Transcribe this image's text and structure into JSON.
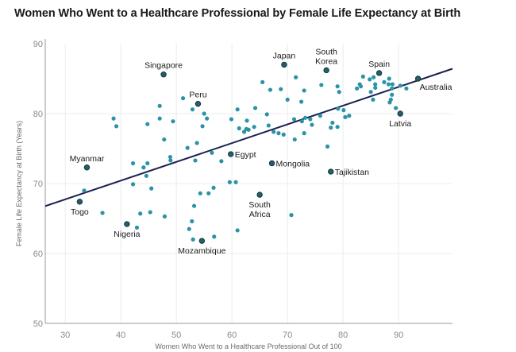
{
  "chart_data": {
    "type": "scatter",
    "title": "Women Who Went to a Healthcare Professional by Female Life Expectancy at Birth",
    "xlabel": "Women Who Went to a Healthcare Professional Out of 100",
    "ylabel": "Female Life Expectancy at Birth (Years)",
    "xlim": [
      26.4,
      99.7
    ],
    "ylim": [
      50,
      90
    ],
    "xticks": [
      30,
      40,
      50,
      60,
      70,
      80,
      90
    ],
    "yticks": [
      50,
      60,
      70,
      80,
      90
    ],
    "grid": true,
    "colors": {
      "point": "#2b93a6",
      "highlight": "#24606c",
      "highlight_stroke": "#14343a",
      "trend": "#1c2150",
      "grid": "#ececec",
      "axis": "#9a9a9a"
    },
    "trendline": {
      "slope": 0.268,
      "intercept": 59.7
    },
    "highlighted": [
      {
        "name": "Togo",
        "x": 32.6,
        "y": 67.4,
        "label_pos": "below"
      },
      {
        "name": "Myanmar",
        "x": 33.9,
        "y": 72.3,
        "label_pos": "above"
      },
      {
        "name": "Nigeria",
        "x": 41.1,
        "y": 64.2,
        "label_pos": "below"
      },
      {
        "name": "Singapore",
        "x": 47.7,
        "y": 85.6,
        "label_pos": "above"
      },
      {
        "name": "Peru",
        "x": 53.9,
        "y": 81.4,
        "label_pos": "above"
      },
      {
        "name": "Mozambique",
        "x": 54.6,
        "y": 61.8,
        "label_pos": "below"
      },
      {
        "name": "Egypt",
        "x": 59.8,
        "y": 74.2,
        "label_pos": "right"
      },
      {
        "name": "South Africa",
        "x": 65.0,
        "y": 68.4,
        "label_pos": "below"
      },
      {
        "name": "Mongolia",
        "x": 67.2,
        "y": 72.9,
        "label_pos": "right"
      },
      {
        "name": "Japan",
        "x": 69.4,
        "y": 87.0,
        "label_pos": "above"
      },
      {
        "name": "South Korea",
        "x": 77.0,
        "y": 86.2,
        "label_pos": "above"
      },
      {
        "name": "Tajikistan",
        "x": 77.8,
        "y": 71.7,
        "label_pos": "right"
      },
      {
        "name": "Spain",
        "x": 86.5,
        "y": 85.8,
        "label_pos": "above"
      },
      {
        "name": "Latvia",
        "x": 90.3,
        "y": 80.0,
        "label_pos": "below"
      },
      {
        "name": "Australia",
        "x": 93.5,
        "y": 85.0,
        "label_pos": "below-right"
      }
    ],
    "points": [
      [
        33.4,
        69.0
      ],
      [
        36.7,
        65.8
      ],
      [
        42.9,
        63.7
      ],
      [
        43.5,
        65.7
      ],
      [
        45.3,
        65.9
      ],
      [
        47.9,
        65.3
      ],
      [
        42.2,
        72.9
      ],
      [
        44.8,
        72.9
      ],
      [
        44.1,
        72.3
      ],
      [
        44.6,
        71.1
      ],
      [
        42.2,
        69.9
      ],
      [
        45.5,
        69.3
      ],
      [
        51.2,
        82.2
      ],
      [
        47.0,
        81.1
      ],
      [
        52.9,
        80.6
      ],
      [
        55.0,
        80.0
      ],
      [
        55.5,
        79.3
      ],
      [
        54.7,
        78.2
      ],
      [
        38.7,
        79.3
      ],
      [
        39.2,
        78.2
      ],
      [
        44.8,
        78.5
      ],
      [
        47.0,
        79.3
      ],
      [
        49.4,
        78.9
      ],
      [
        47.8,
        76.3
      ],
      [
        53.7,
        75.8
      ],
      [
        52.0,
        75.1
      ],
      [
        48.9,
        73.8
      ],
      [
        48.95,
        73.3
      ],
      [
        56.4,
        74.4
      ],
      [
        58.1,
        73.2
      ],
      [
        53.4,
        73.3
      ],
      [
        59.6,
        70.2
      ],
      [
        60.7,
        70.2
      ],
      [
        56.7,
        69.4
      ],
      [
        54.3,
        68.6
      ],
      [
        55.8,
        68.6
      ],
      [
        53.2,
        66.8
      ],
      [
        52.8,
        64.6
      ],
      [
        52.3,
        63.5
      ],
      [
        61.0,
        63.3
      ],
      [
        53.0,
        62.0
      ],
      [
        56.8,
        62.4
      ],
      [
        71.5,
        85.2
      ],
      [
        65.5,
        84.5
      ],
      [
        66.9,
        83.4
      ],
      [
        68.8,
        83.5
      ],
      [
        73.0,
        83.3
      ],
      [
        76.1,
        84.1
      ],
      [
        79.0,
        83.9
      ],
      [
        79.3,
        83.1
      ],
      [
        70.0,
        82.0
      ],
      [
        72.5,
        81.7
      ],
      [
        61.0,
        80.6
      ],
      [
        64.2,
        80.8
      ],
      [
        79.1,
        80.7
      ],
      [
        66.3,
        79.9
      ],
      [
        59.9,
        79.2
      ],
      [
        62.7,
        79.0
      ],
      [
        61.3,
        77.9
      ],
      [
        62.2,
        77.4
      ],
      [
        62.6,
        77.8
      ],
      [
        63.0,
        77.7
      ],
      [
        64.0,
        78.1
      ],
      [
        66.6,
        78.3
      ],
      [
        67.5,
        77.4
      ],
      [
        68.4,
        77.2
      ],
      [
        69.3,
        77.0
      ],
      [
        71.2,
        79.2
      ],
      [
        72.6,
        78.9
      ],
      [
        73.2,
        79.4
      ],
      [
        74.1,
        79.2
      ],
      [
        74.4,
        78.4
      ],
      [
        75.9,
        79.7
      ],
      [
        78.1,
        78.7
      ],
      [
        79.0,
        78.1
      ],
      [
        77.8,
        78.0
      ],
      [
        73.0,
        77.2
      ],
      [
        71.3,
        76.3
      ],
      [
        77.2,
        75.3
      ],
      [
        70.7,
        65.5
      ],
      [
        83.6,
        85.3
      ],
      [
        84.8,
        84.9
      ],
      [
        85.5,
        85.2
      ],
      [
        83.0,
        84.2
      ],
      [
        83.2,
        83.9
      ],
      [
        82.5,
        83.6
      ],
      [
        85.8,
        84.2
      ],
      [
        85.8,
        83.7
      ],
      [
        85.0,
        83.1
      ],
      [
        87.4,
        84.5
      ],
      [
        88.3,
        85.0
      ],
      [
        88.2,
        84.2
      ],
      [
        88.9,
        84.2
      ],
      [
        88.8,
        83.6
      ],
      [
        90.3,
        84.0
      ],
      [
        91.4,
        83.6
      ],
      [
        88.8,
        82.7
      ],
      [
        88.6,
        82.0
      ],
      [
        88.4,
        81.6
      ],
      [
        85.4,
        82.0
      ],
      [
        89.5,
        80.8
      ],
      [
        80.1,
        80.5
      ],
      [
        80.4,
        79.5
      ],
      [
        81.1,
        79.7
      ]
    ]
  }
}
